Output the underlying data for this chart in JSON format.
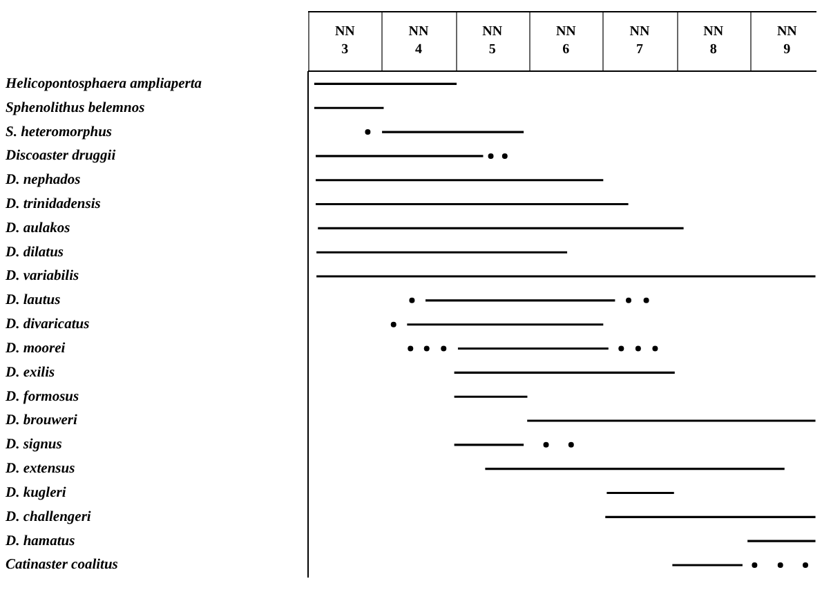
{
  "chart_data": {
    "type": "bar",
    "orientation": "horizontal",
    "legend": false,
    "grid": false,
    "xlabel": "NN",
    "categories": [
      "Helicopontosphaera ampliaperta",
      "Sphenolithus belemnos",
      "S. heteromorphus",
      "Discoaster druggii",
      "D. nephados",
      "D. trinidadensis",
      "D. aulakos",
      "D. dilatus",
      "D. variabilis",
      "D. lautus",
      "D. divaricatus",
      "D. moorei",
      "D. exilis",
      "D. formosus",
      "D. brouweri",
      "D. signus",
      "D. extensus",
      "D. kugleri",
      "D. challengeri",
      "D. hamatus",
      "Catinaster coalitus"
    ],
    "xlim": [
      2.5,
      9.4
    ],
    "xticks": [
      3,
      4,
      5,
      6,
      7,
      8,
      9
    ],
    "series": [
      {
        "color": "#000000",
        "base": [
          2.59,
          2.59,
          3.51,
          2.61,
          2.61,
          2.61,
          2.64,
          2.62,
          2.62,
          4.1,
          3.85,
          4.54,
          4.49,
          4.49,
          5.48,
          4.49,
          4.91,
          6.56,
          6.54,
          8.47,
          7.45
        ],
        "values": [
          1.92,
          0.93,
          1.91,
          2.26,
          3.89,
          4.23,
          4.95,
          3.39,
          6.76,
          2.56,
          2.65,
          2.03,
          2.98,
          0.98,
          3.9,
          0.93,
          4.05,
          0.9,
          2.84,
          0.91,
          0.94
        ]
      },
      {
        "type": "scatter",
        "color": "#000000",
        "marker": "circle",
        "x": [
          "S. heteromorphus",
          "Discoaster druggii",
          "Discoaster druggii",
          "D. lautus",
          "D. lautus",
          "D. lautus",
          "D. divaricatus",
          "D. moorei",
          "D. moorei",
          "D. moorei",
          "D. moorei",
          "D. moorei",
          "D. moorei",
          "D. signus",
          "D. signus",
          "Catinaster coalitus",
          "Catinaster coalitus",
          "Catinaster coalitus"
        ],
        "values": [
          3.31,
          4.98,
          5.17,
          3.91,
          6.85,
          7.09,
          3.66,
          3.89,
          4.11,
          4.34,
          6.75,
          6.98,
          7.21,
          5.73,
          6.07,
          8.56,
          8.91,
          9.25
        ]
      }
    ]
  }
}
